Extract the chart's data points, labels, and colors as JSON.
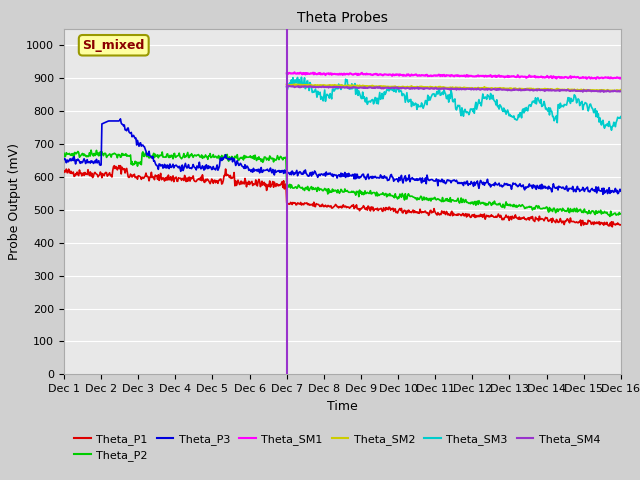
{
  "title": "Theta Probes",
  "ylabel": "Probe Output (mV)",
  "xlabel": "Time",
  "ylim": [
    0,
    1050
  ],
  "yticks": [
    0,
    100,
    200,
    300,
    400,
    500,
    600,
    700,
    800,
    900,
    1000
  ],
  "xtick_labels": [
    "Dec 1",
    "Dec 2",
    "Dec 3",
    "Dec 4",
    "Dec 5",
    "Dec 6",
    "Dec 7",
    "Dec 8",
    "Dec 9",
    "Dec 10",
    "Dec 11",
    "Dec 12",
    "Dec 13",
    "Dec 14",
    "Dec 15",
    "Dec 16"
  ],
  "fig_facecolor": "#d0d0d0",
  "plot_facecolor": "#e8e8e8",
  "annotation_label": "SI_mixed",
  "series_colors": {
    "Theta_P1": "#dd0000",
    "Theta_P2": "#00cc00",
    "Theta_P3": "#0000dd",
    "Theta_SM1": "#ff00ff",
    "Theta_SM2": "#cccc00",
    "Theta_SM3": "#00cccc",
    "Theta_SM4": "#9933cc"
  },
  "irrigation_day": 6.0,
  "grid_color": "#ffffff",
  "title_fontsize": 10,
  "axis_label_fontsize": 9,
  "tick_fontsize": 8,
  "legend_fontsize": 8
}
